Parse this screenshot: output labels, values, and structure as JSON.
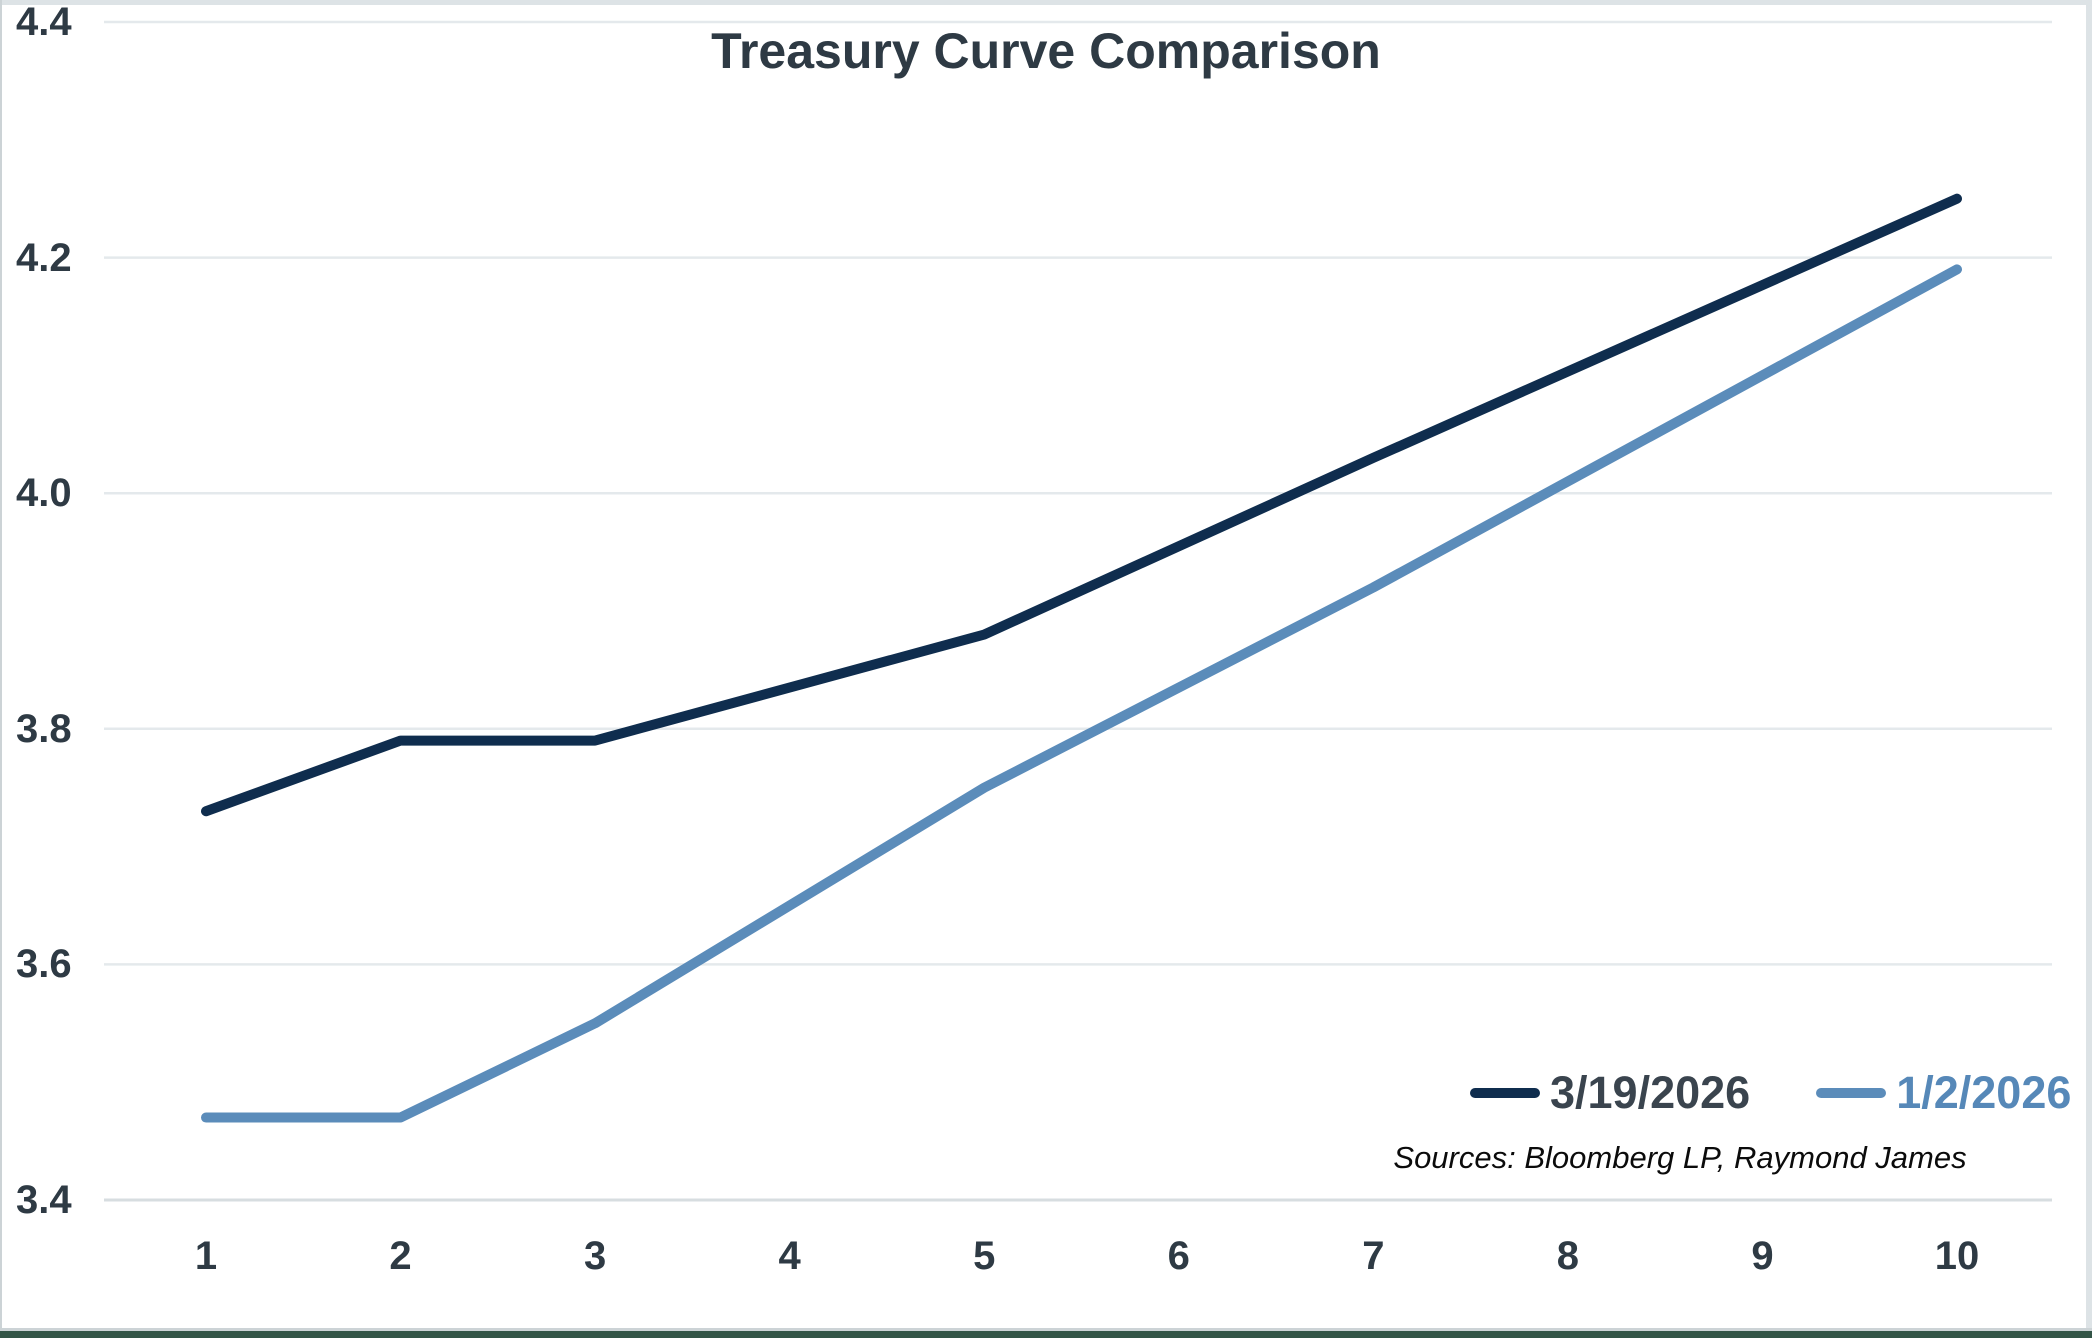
{
  "title": "Treasury Curve Comparison",
  "sources": "Sources: Bloomberg LP, Raymond James",
  "legend": [
    {
      "label": "3/19/2026",
      "line_color": "#0f2d4e",
      "text_color": "#3a444e"
    },
    {
      "label": "1/2/2026",
      "line_color": "#5b8cba",
      "text_color": "#5688b8"
    }
  ],
  "colors": {
    "title_text": "#2e3a44",
    "tick_text": "#2e3a44",
    "gridline": "#e4e9ec",
    "axis_baseline": "#d7dde0",
    "series1": "#0f2d4e",
    "series2": "#5b8cba",
    "frame_light": "#dde3e6",
    "bottom_rule": "#335547"
  },
  "chart_data": {
    "type": "line",
    "title": "Treasury Curve Comparison",
    "xlabel": "",
    "ylabel": "",
    "xlim": [
      1,
      10
    ],
    "ylim": [
      3.4,
      4.4
    ],
    "x_ticks": [
      1,
      2,
      3,
      4,
      5,
      6,
      7,
      8,
      9,
      10
    ],
    "y_ticks": [
      3.4,
      3.6,
      3.8,
      4.0,
      4.2,
      4.4
    ],
    "y_tick_labels": [
      "3.4",
      "3.6",
      "3.8",
      "4.0",
      "4.2",
      "4.4"
    ],
    "grid": "horizontal",
    "legend_position": "inside-bottom-right",
    "series": [
      {
        "name": "3/19/2026",
        "color": "#0f2d4e",
        "x": [
          1,
          2,
          3,
          5,
          7,
          10
        ],
        "y": [
          3.73,
          3.79,
          3.79,
          3.88,
          4.03,
          4.25
        ]
      },
      {
        "name": "1/2/2026",
        "color": "#5b8cba",
        "x": [
          1,
          2,
          3,
          5,
          7,
          10
        ],
        "y": [
          3.47,
          3.47,
          3.55,
          3.75,
          3.92,
          4.19
        ]
      }
    ],
    "sources_note": "Sources: Bloomberg LP, Raymond James"
  }
}
